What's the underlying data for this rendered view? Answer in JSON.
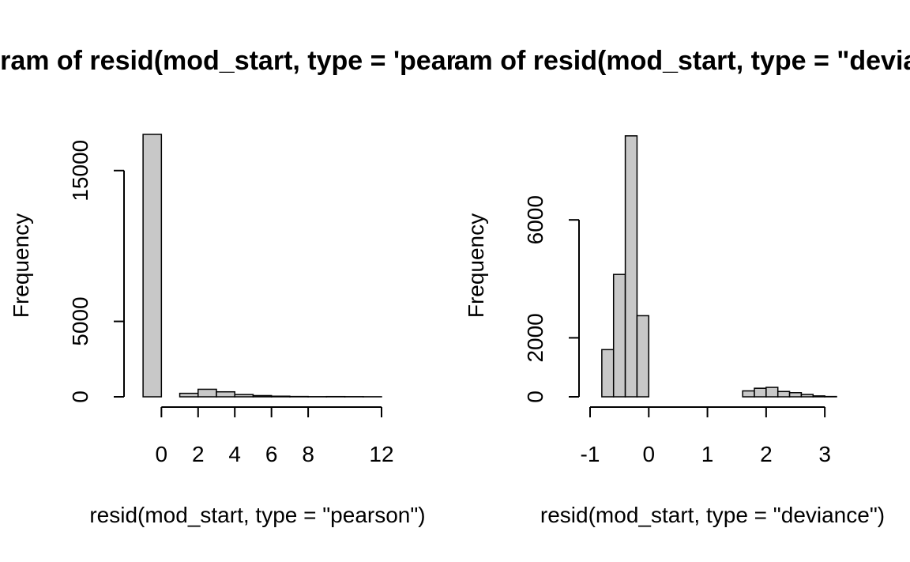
{
  "chart_data": [
    {
      "type": "bar",
      "title": "Histogram of resid(mod_start, type = 'pearson')",
      "xlabel": "resid(mod_start, type = \"pearson\")",
      "ylabel": "Frequency",
      "bar_color": "#c8c8c8",
      "xticks": [
        0,
        2,
        4,
        6,
        8,
        12
      ],
      "xtick_labels": [
        "0",
        "2",
        "4",
        "6",
        "8",
        "12"
      ],
      "yticks": [
        0,
        5000,
        15000
      ],
      "ytick_labels": [
        "0",
        "5000",
        "15000"
      ],
      "xlim": [
        -1.5,
        12
      ],
      "ylim": [
        0,
        17400
      ],
      "bins": [
        {
          "x0": -1,
          "x1": 0,
          "count": 17400
        },
        {
          "x0": 0,
          "x1": 1,
          "count": 0
        },
        {
          "x0": 1,
          "x1": 2,
          "count": 230
        },
        {
          "x0": 2,
          "x1": 3,
          "count": 500
        },
        {
          "x0": 3,
          "x1": 4,
          "count": 330
        },
        {
          "x0": 4,
          "x1": 5,
          "count": 150
        },
        {
          "x0": 5,
          "x1": 6,
          "count": 80
        },
        {
          "x0": 6,
          "x1": 7,
          "count": 40
        },
        {
          "x0": 7,
          "x1": 8,
          "count": 20
        },
        {
          "x0": 8,
          "x1": 9,
          "count": 10
        },
        {
          "x0": 9,
          "x1": 10,
          "count": 15
        },
        {
          "x0": 10,
          "x1": 11,
          "count": 10
        },
        {
          "x0": 11,
          "x1": 12,
          "count": 5
        }
      ]
    },
    {
      "type": "bar",
      "title": "Histogram of resid(mod_start, type = \"deviance\")",
      "xlabel": "resid(mod_start, type = \"deviance\")",
      "ylabel": "Frequency",
      "bar_color": "#c8c8c8",
      "xticks": [
        -1,
        0,
        1,
        2,
        3
      ],
      "xtick_labels": [
        "-1",
        "0",
        "1",
        "2",
        "3"
      ],
      "yticks": [
        0,
        2000,
        6000
      ],
      "ytick_labels": [
        "0",
        "2000",
        "6000"
      ],
      "xlim": [
        -1,
        3.2
      ],
      "ylim": [
        0,
        8900
      ],
      "bins": [
        {
          "x0": -0.8,
          "x1": -0.6,
          "count": 1600
        },
        {
          "x0": -0.6,
          "x1": -0.4,
          "count": 4150
        },
        {
          "x0": -0.4,
          "x1": -0.2,
          "count": 8850
        },
        {
          "x0": -0.2,
          "x1": 0.0,
          "count": 2750
        },
        {
          "x0": 0.0,
          "x1": 0.2,
          "count": 0
        },
        {
          "x0": 0.2,
          "x1": 0.4,
          "count": 0
        },
        {
          "x0": 0.4,
          "x1": 0.6,
          "count": 0
        },
        {
          "x0": 0.6,
          "x1": 0.8,
          "count": 0
        },
        {
          "x0": 0.8,
          "x1": 1.0,
          "count": 0
        },
        {
          "x0": 1.0,
          "x1": 1.2,
          "count": 0
        },
        {
          "x0": 1.2,
          "x1": 1.4,
          "count": 0
        },
        {
          "x0": 1.4,
          "x1": 1.6,
          "count": 0
        },
        {
          "x0": 1.6,
          "x1": 1.8,
          "count": 200
        },
        {
          "x0": 1.8,
          "x1": 2.0,
          "count": 290
        },
        {
          "x0": 2.0,
          "x1": 2.2,
          "count": 320
        },
        {
          "x0": 2.2,
          "x1": 2.4,
          "count": 180
        },
        {
          "x0": 2.4,
          "x1": 2.6,
          "count": 140
        },
        {
          "x0": 2.6,
          "x1": 2.8,
          "count": 80
        },
        {
          "x0": 2.8,
          "x1": 3.0,
          "count": 30
        },
        {
          "x0": 3.0,
          "x1": 3.2,
          "count": 10
        }
      ]
    }
  ]
}
